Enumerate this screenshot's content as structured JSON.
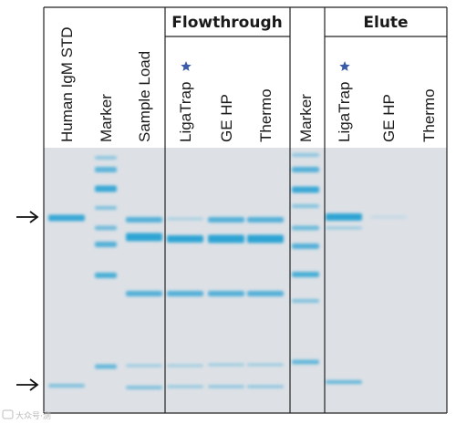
{
  "figure": {
    "groups": [
      {
        "label": "Flowthrough"
      },
      {
        "label": "Elute"
      }
    ],
    "lanes": [
      {
        "label": "Human IgM STD",
        "star": false
      },
      {
        "label": "Marker",
        "star": false
      },
      {
        "label": "Sample Load",
        "star": false
      },
      {
        "label": "LigaTrap",
        "star": true
      },
      {
        "label": "GE HP",
        "star": false
      },
      {
        "label": "Thermo",
        "star": false
      },
      {
        "label": "Marker",
        "star": false
      },
      {
        "label": "LigaTrap",
        "star": true
      },
      {
        "label": "GE HP",
        "star": false
      },
      {
        "label": "Thermo",
        "star": false
      }
    ],
    "arrows": [
      {
        "name": "heavy-chain-arrow"
      },
      {
        "name": "light-chain-arrow"
      }
    ],
    "watermark": "大众号·测",
    "colors": {
      "gel_background": "#dde1e6",
      "band": "#2ea4d4",
      "star": "#3b5aa8",
      "border": "#222222"
    }
  }
}
